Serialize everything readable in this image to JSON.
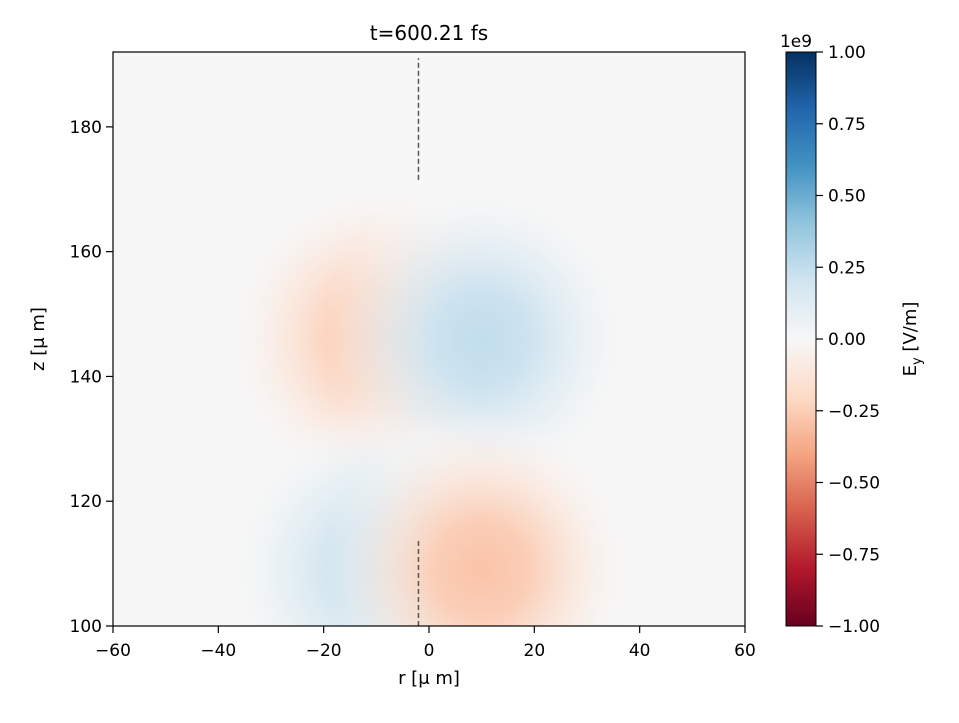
{
  "chart_data": {
    "type": "heatmap",
    "title": "t=600.21 fs",
    "xlabel": "r [μ m]",
    "ylabel": "z [μ m]",
    "xlim": [
      -60,
      60
    ],
    "ylim": [
      100,
      192
    ],
    "xticks": [
      -60,
      -40,
      -20,
      0,
      20,
      40,
      60
    ],
    "xtick_labels": [
      "−60",
      "−40",
      "−20",
      "0",
      "20",
      "40",
      "60"
    ],
    "yticks": [
      100,
      120,
      140,
      160,
      180
    ],
    "ytick_labels": [
      "100",
      "120",
      "140",
      "160",
      "180"
    ],
    "grid": false,
    "colorbar": {
      "label_main": "E",
      "label_sub": "y",
      "label_unit": " [V/m]",
      "offset": "1e9",
      "range": [
        -1.0,
        1.0
      ],
      "colormap": "RdBu",
      "colors": [
        "#67001f",
        "#b2182b",
        "#d6604d",
        "#f4a582",
        "#fddbc7",
        "#f7f7f7",
        "#d1e5f0",
        "#92c5de",
        "#4393c3",
        "#2166ac",
        "#053061"
      ],
      "ticks": [
        1.0,
        0.75,
        0.5,
        0.25,
        0.0,
        -0.25,
        -0.5,
        -0.75,
        -1.0
      ],
      "tick_labels": [
        "1.00",
        "0.75",
        "0.50",
        "0.25",
        "0.00",
        "−0.25",
        "−0.50",
        "−0.75",
        "−1.00"
      ]
    },
    "field_lobes": [
      {
        "r": -10,
        "z": 146,
        "value": -0.27
      },
      {
        "r": 10,
        "z": 146,
        "value": 0.25
      },
      {
        "r": -10,
        "z": 109,
        "value": 0.23
      },
      {
        "r": 10,
        "z": 109,
        "value": -0.29
      }
    ],
    "dashed_line": {
      "r": -2,
      "segments": [
        [
          171.5,
          191
        ],
        [
          100,
          114
        ]
      ]
    }
  }
}
